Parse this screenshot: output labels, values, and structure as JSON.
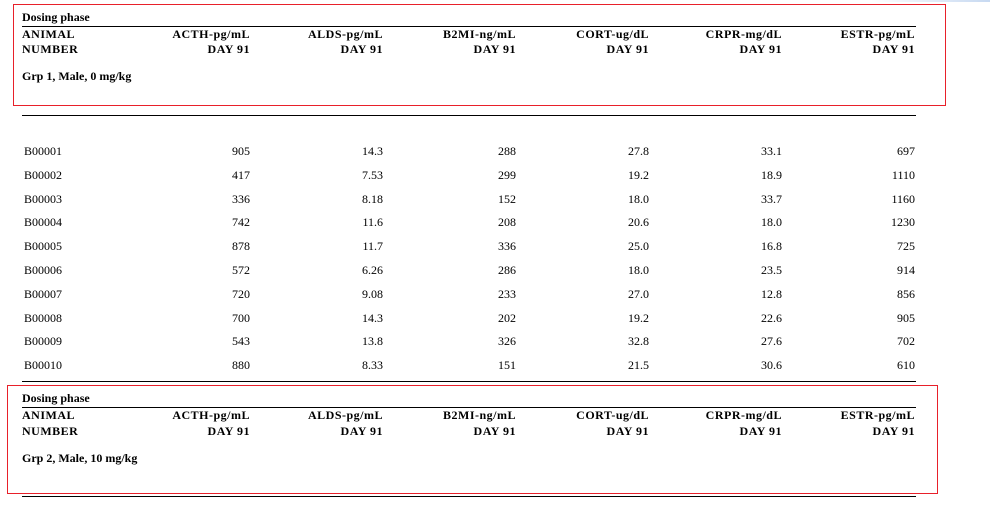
{
  "columns": {
    "animal_line1": "ANIMAL",
    "animal_line2": "NUMBER",
    "headers": [
      "ACTH-pg/mL",
      "ALDS-pg/mL",
      "B2MI-ng/mL",
      "CORT-ug/dL",
      "CRPR-mg/dL",
      "ESTR-pg/mL"
    ],
    "day_label": "DAY  91"
  },
  "group1": {
    "phase": "Dosing phase",
    "label": "Grp  1, Male, 0 mg/kg",
    "rows": [
      [
        "B00001",
        "905",
        "14.3",
        "288",
        "27.8",
        "33.1",
        "697"
      ],
      [
        "B00002",
        "417",
        "7.53",
        "299",
        "19.2",
        "18.9",
        "1110"
      ],
      [
        "B00003",
        "336",
        "8.18",
        "152",
        "18.0",
        "33.7",
        "1160"
      ],
      [
        "B00004",
        "742",
        "11.6",
        "208",
        "20.6",
        "18.0",
        "1230"
      ],
      [
        "B00005",
        "878",
        "11.7",
        "336",
        "25.0",
        "16.8",
        "725"
      ],
      [
        "B00006",
        "572",
        "6.26",
        "286",
        "18.0",
        "23.5",
        "914"
      ],
      [
        "B00007",
        "720",
        "9.08",
        "233",
        "27.0",
        "12.8",
        "856"
      ],
      [
        "B00008",
        "700",
        "14.3",
        "202",
        "19.2",
        "22.6",
        "905"
      ],
      [
        "B00009",
        "543",
        "13.8",
        "326",
        "32.8",
        "27.6",
        "702"
      ],
      [
        "B00010",
        "880",
        "8.33",
        "151",
        "21.5",
        "30.6",
        "610"
      ]
    ]
  },
  "group2": {
    "phase": "Dosing phase",
    "label": "Grp  2, Male, 10 mg/kg"
  },
  "colors": {
    "highlight": "#e8202a",
    "text": "#000000"
  }
}
